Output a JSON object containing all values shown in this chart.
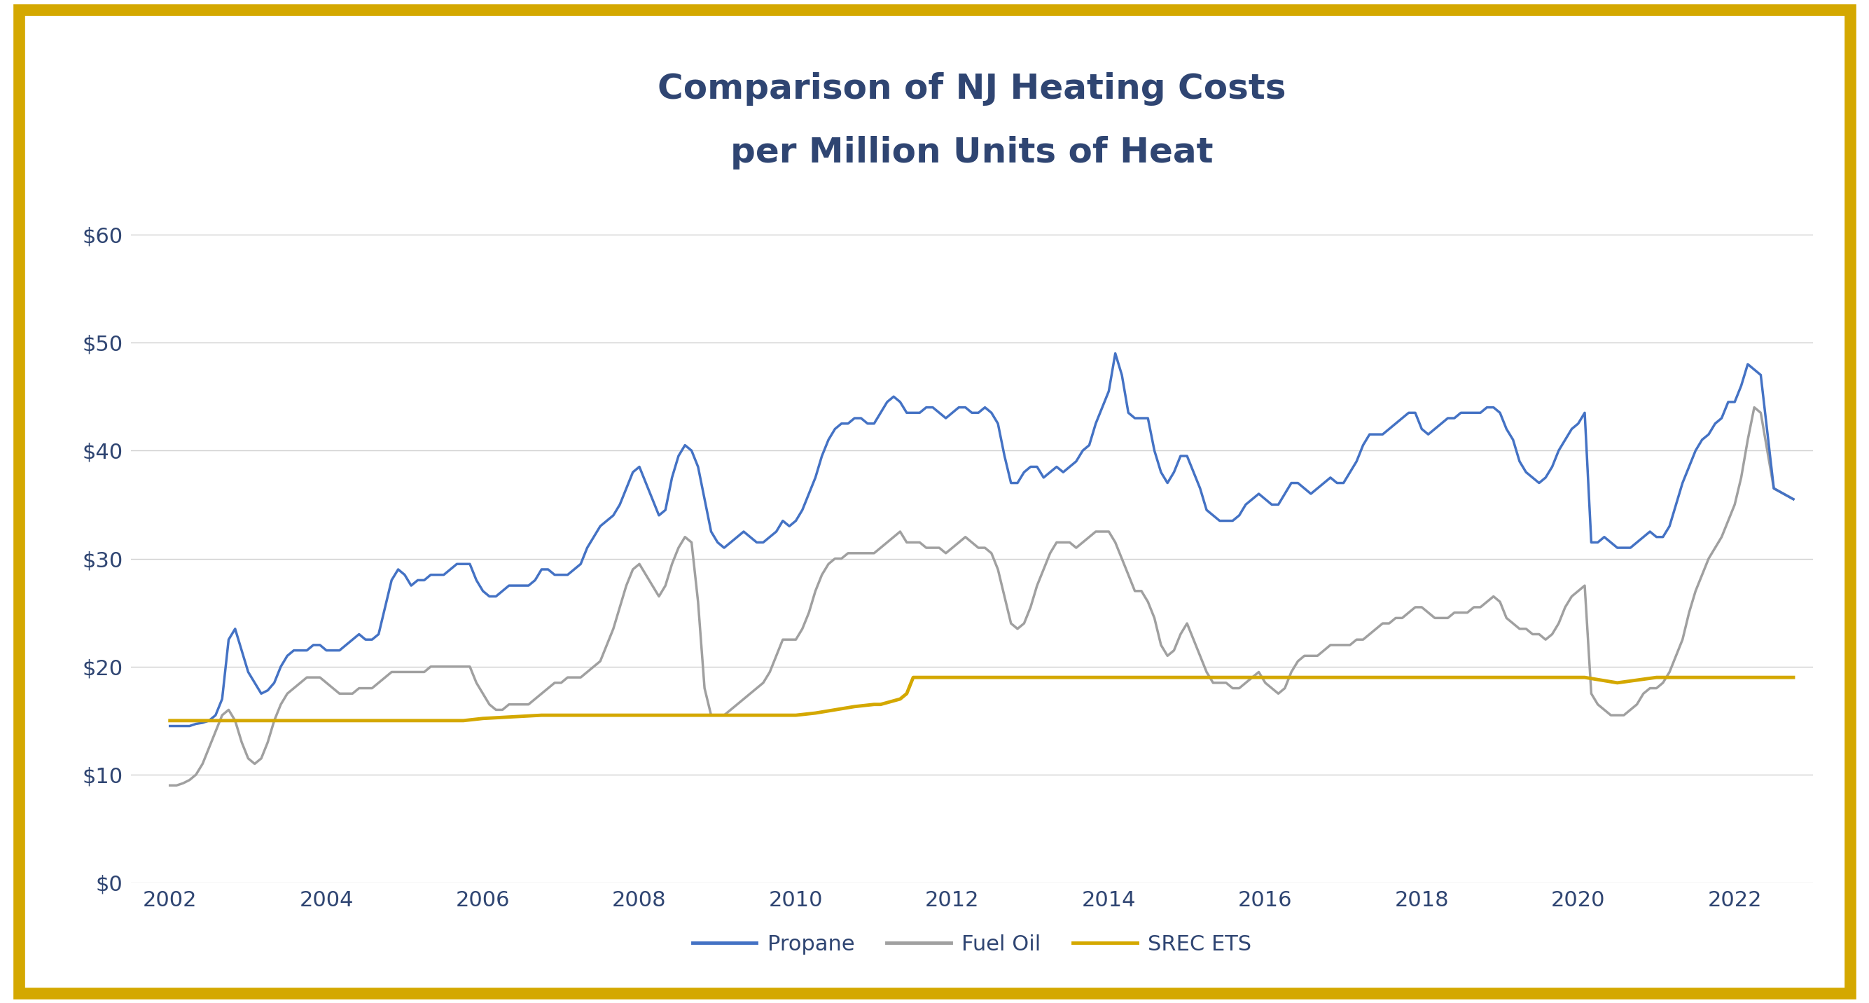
{
  "title_line1": "Comparison of NJ Heating Costs",
  "title_line2": "per Million Units of Heat",
  "title_fontsize": 36,
  "title_fontweight": "bold",
  "title_color": "#2f4572",
  "ylim": [
    0,
    65
  ],
  "yticks": [
    0,
    10,
    20,
    30,
    40,
    50,
    60
  ],
  "ytick_labels": [
    "$0",
    "$10",
    "$20",
    "$30",
    "$40",
    "$50",
    "$60"
  ],
  "background_color": "#ffffff",
  "border_color": "#d4a800",
  "border_linewidth": 12,
  "grid_color": "#d0d0d0",
  "grid_linewidth": 1.0,
  "propane_color": "#4472c4",
  "fueloil_color": "#a0a0a0",
  "srec_color": "#d4a800",
  "propane_linewidth": 2.5,
  "fueloil_linewidth": 2.5,
  "srec_linewidth": 3.5,
  "legend_labels": [
    "Propane",
    "Fuel Oil",
    "SREC ETS"
  ],
  "legend_fontsize": 22,
  "tick_fontsize": 22,
  "tick_color": "#2f4572",
  "xticks": [
    2002,
    2004,
    2006,
    2008,
    2010,
    2012,
    2014,
    2016,
    2018,
    2020,
    2022
  ],
  "xlim": [
    2001.5,
    2023.0
  ],
  "propane_x": [
    2002.0,
    2002.083,
    2002.167,
    2002.25,
    2002.333,
    2002.417,
    2002.5,
    2002.583,
    2002.667,
    2002.75,
    2002.833,
    2002.917,
    2003.0,
    2003.083,
    2003.167,
    2003.25,
    2003.333,
    2003.417,
    2003.5,
    2003.583,
    2003.667,
    2003.75,
    2003.833,
    2003.917,
    2004.0,
    2004.083,
    2004.167,
    2004.25,
    2004.333,
    2004.417,
    2004.5,
    2004.583,
    2004.667,
    2004.75,
    2004.833,
    2004.917,
    2005.0,
    2005.083,
    2005.167,
    2005.25,
    2005.333,
    2005.417,
    2005.5,
    2005.583,
    2005.667,
    2005.75,
    2005.833,
    2005.917,
    2006.0,
    2006.083,
    2006.167,
    2006.25,
    2006.333,
    2006.417,
    2006.5,
    2006.583,
    2006.667,
    2006.75,
    2006.833,
    2006.917,
    2007.0,
    2007.083,
    2007.167,
    2007.25,
    2007.333,
    2007.417,
    2007.5,
    2007.583,
    2007.667,
    2007.75,
    2007.833,
    2007.917,
    2008.0,
    2008.083,
    2008.167,
    2008.25,
    2008.333,
    2008.417,
    2008.5,
    2008.583,
    2008.667,
    2008.75,
    2008.833,
    2008.917,
    2009.0,
    2009.083,
    2009.167,
    2009.25,
    2009.333,
    2009.417,
    2009.5,
    2009.583,
    2009.667,
    2009.75,
    2009.833,
    2009.917,
    2010.0,
    2010.083,
    2010.167,
    2010.25,
    2010.333,
    2010.417,
    2010.5,
    2010.583,
    2010.667,
    2010.75,
    2010.833,
    2010.917,
    2011.0,
    2011.083,
    2011.167,
    2011.25,
    2011.333,
    2011.417,
    2011.5,
    2011.583,
    2011.667,
    2011.75,
    2011.833,
    2011.917,
    2012.0,
    2012.083,
    2012.167,
    2012.25,
    2012.333,
    2012.417,
    2012.5,
    2012.583,
    2012.667,
    2012.75,
    2012.833,
    2012.917,
    2013.0,
    2013.083,
    2013.167,
    2013.25,
    2013.333,
    2013.417,
    2013.5,
    2013.583,
    2013.667,
    2013.75,
    2013.833,
    2013.917,
    2014.0,
    2014.083,
    2014.167,
    2014.25,
    2014.333,
    2014.417,
    2014.5,
    2014.583,
    2014.667,
    2014.75,
    2014.833,
    2014.917,
    2015.0,
    2015.083,
    2015.167,
    2015.25,
    2015.333,
    2015.417,
    2015.5,
    2015.583,
    2015.667,
    2015.75,
    2015.833,
    2015.917,
    2016.0,
    2016.083,
    2016.167,
    2016.25,
    2016.333,
    2016.417,
    2016.5,
    2016.583,
    2016.667,
    2016.75,
    2016.833,
    2016.917,
    2017.0,
    2017.083,
    2017.167,
    2017.25,
    2017.333,
    2017.417,
    2017.5,
    2017.583,
    2017.667,
    2017.75,
    2017.833,
    2017.917,
    2018.0,
    2018.083,
    2018.167,
    2018.25,
    2018.333,
    2018.417,
    2018.5,
    2018.583,
    2018.667,
    2018.75,
    2018.833,
    2018.917,
    2019.0,
    2019.083,
    2019.167,
    2019.25,
    2019.333,
    2019.417,
    2019.5,
    2019.583,
    2019.667,
    2019.75,
    2019.833,
    2019.917,
    2020.0,
    2020.083,
    2020.167,
    2020.25,
    2020.333,
    2020.417,
    2020.5,
    2020.583,
    2020.667,
    2020.75,
    2020.833,
    2020.917,
    2021.0,
    2021.083,
    2021.167,
    2021.25,
    2021.333,
    2021.417,
    2021.5,
    2021.583,
    2021.667,
    2021.75,
    2021.833,
    2021.917,
    2022.0,
    2022.083,
    2022.167,
    2022.25,
    2022.333,
    2022.5,
    2022.75
  ],
  "propane_y": [
    14.5,
    14.5,
    14.5,
    14.5,
    14.7,
    14.8,
    15.0,
    15.5,
    17.0,
    22.5,
    23.5,
    21.5,
    19.5,
    18.5,
    17.5,
    17.8,
    18.5,
    20.0,
    21.0,
    21.5,
    21.5,
    21.5,
    22.0,
    22.0,
    21.5,
    21.5,
    21.5,
    22.0,
    22.5,
    23.0,
    22.5,
    22.5,
    23.0,
    25.5,
    28.0,
    29.0,
    28.5,
    27.5,
    28.0,
    28.0,
    28.5,
    28.5,
    28.5,
    29.0,
    29.5,
    29.5,
    29.5,
    28.0,
    27.0,
    26.5,
    26.5,
    27.0,
    27.5,
    27.5,
    27.5,
    27.5,
    28.0,
    29.0,
    29.0,
    28.5,
    28.5,
    28.5,
    29.0,
    29.5,
    31.0,
    32.0,
    33.0,
    33.5,
    34.0,
    35.0,
    36.5,
    38.0,
    38.5,
    37.0,
    35.5,
    34.0,
    34.5,
    37.5,
    39.5,
    40.5,
    40.0,
    38.5,
    35.5,
    32.5,
    31.5,
    31.0,
    31.5,
    32.0,
    32.5,
    32.0,
    31.5,
    31.5,
    32.0,
    32.5,
    33.5,
    33.0,
    33.5,
    34.5,
    36.0,
    37.5,
    39.5,
    41.0,
    42.0,
    42.5,
    42.5,
    43.0,
    43.0,
    42.5,
    42.5,
    43.5,
    44.5,
    45.0,
    44.5,
    43.5,
    43.5,
    43.5,
    44.0,
    44.0,
    43.5,
    43.0,
    43.5,
    44.0,
    44.0,
    43.5,
    43.5,
    44.0,
    43.5,
    42.5,
    39.5,
    37.0,
    37.0,
    38.0,
    38.5,
    38.5,
    37.5,
    38.0,
    38.5,
    38.0,
    38.5,
    39.0,
    40.0,
    40.5,
    42.5,
    44.0,
    45.5,
    49.0,
    47.0,
    43.5,
    43.0,
    43.0,
    43.0,
    40.0,
    38.0,
    37.0,
    38.0,
    39.5,
    39.5,
    38.0,
    36.5,
    34.5,
    34.0,
    33.5,
    33.5,
    33.5,
    34.0,
    35.0,
    35.5,
    36.0,
    35.5,
    35.0,
    35.0,
    36.0,
    37.0,
    37.0,
    36.5,
    36.0,
    36.5,
    37.0,
    37.5,
    37.0,
    37.0,
    38.0,
    39.0,
    40.5,
    41.5,
    41.5,
    41.5,
    42.0,
    42.5,
    43.0,
    43.5,
    43.5,
    42.0,
    41.5,
    42.0,
    42.5,
    43.0,
    43.0,
    43.5,
    43.5,
    43.5,
    43.5,
    44.0,
    44.0,
    43.5,
    42.0,
    41.0,
    39.0,
    38.0,
    37.5,
    37.0,
    37.5,
    38.5,
    40.0,
    41.0,
    42.0,
    42.5,
    43.5,
    31.5,
    31.5,
    32.0,
    31.5,
    31.0,
    31.0,
    31.0,
    31.5,
    32.0,
    32.5,
    32.0,
    32.0,
    33.0,
    35.0,
    37.0,
    38.5,
    40.0,
    41.0,
    41.5,
    42.5,
    43.0,
    44.5,
    44.5,
    46.0,
    48.0,
    47.5,
    47.0,
    36.5,
    35.5
  ],
  "fueloil_x": [
    2002.0,
    2002.083,
    2002.167,
    2002.25,
    2002.333,
    2002.417,
    2002.5,
    2002.583,
    2002.667,
    2002.75,
    2002.833,
    2002.917,
    2003.0,
    2003.083,
    2003.167,
    2003.25,
    2003.333,
    2003.417,
    2003.5,
    2003.583,
    2003.667,
    2003.75,
    2003.833,
    2003.917,
    2004.0,
    2004.083,
    2004.167,
    2004.25,
    2004.333,
    2004.417,
    2004.5,
    2004.583,
    2004.667,
    2004.75,
    2004.833,
    2004.917,
    2005.0,
    2005.083,
    2005.167,
    2005.25,
    2005.333,
    2005.417,
    2005.5,
    2005.583,
    2005.667,
    2005.75,
    2005.833,
    2005.917,
    2006.0,
    2006.083,
    2006.167,
    2006.25,
    2006.333,
    2006.417,
    2006.5,
    2006.583,
    2006.667,
    2006.75,
    2006.833,
    2006.917,
    2007.0,
    2007.083,
    2007.167,
    2007.25,
    2007.333,
    2007.417,
    2007.5,
    2007.583,
    2007.667,
    2007.75,
    2007.833,
    2007.917,
    2008.0,
    2008.083,
    2008.167,
    2008.25,
    2008.333,
    2008.417,
    2008.5,
    2008.583,
    2008.667,
    2008.75,
    2008.833,
    2008.917,
    2009.0,
    2009.083,
    2009.167,
    2009.25,
    2009.333,
    2009.417,
    2009.5,
    2009.583,
    2009.667,
    2009.75,
    2009.833,
    2009.917,
    2010.0,
    2010.083,
    2010.167,
    2010.25,
    2010.333,
    2010.417,
    2010.5,
    2010.583,
    2010.667,
    2010.75,
    2010.833,
    2010.917,
    2011.0,
    2011.083,
    2011.167,
    2011.25,
    2011.333,
    2011.417,
    2011.5,
    2011.583,
    2011.667,
    2011.75,
    2011.833,
    2011.917,
    2012.0,
    2012.083,
    2012.167,
    2012.25,
    2012.333,
    2012.417,
    2012.5,
    2012.583,
    2012.667,
    2012.75,
    2012.833,
    2012.917,
    2013.0,
    2013.083,
    2013.167,
    2013.25,
    2013.333,
    2013.417,
    2013.5,
    2013.583,
    2013.667,
    2013.75,
    2013.833,
    2013.917,
    2014.0,
    2014.083,
    2014.167,
    2014.25,
    2014.333,
    2014.417,
    2014.5,
    2014.583,
    2014.667,
    2014.75,
    2014.833,
    2014.917,
    2015.0,
    2015.083,
    2015.167,
    2015.25,
    2015.333,
    2015.417,
    2015.5,
    2015.583,
    2015.667,
    2015.75,
    2015.833,
    2015.917,
    2016.0,
    2016.083,
    2016.167,
    2016.25,
    2016.333,
    2016.417,
    2016.5,
    2016.583,
    2016.667,
    2016.75,
    2016.833,
    2016.917,
    2017.0,
    2017.083,
    2017.167,
    2017.25,
    2017.333,
    2017.417,
    2017.5,
    2017.583,
    2017.667,
    2017.75,
    2017.833,
    2017.917,
    2018.0,
    2018.083,
    2018.167,
    2018.25,
    2018.333,
    2018.417,
    2018.5,
    2018.583,
    2018.667,
    2018.75,
    2018.833,
    2018.917,
    2019.0,
    2019.083,
    2019.167,
    2019.25,
    2019.333,
    2019.417,
    2019.5,
    2019.583,
    2019.667,
    2019.75,
    2019.833,
    2019.917,
    2020.0,
    2020.083,
    2020.167,
    2020.25,
    2020.333,
    2020.417,
    2020.5,
    2020.583,
    2020.667,
    2020.75,
    2020.833,
    2020.917,
    2021.0,
    2021.083,
    2021.167,
    2021.25,
    2021.333,
    2021.417,
    2021.5,
    2021.583,
    2021.667,
    2021.75,
    2021.833,
    2021.917,
    2022.0,
    2022.083,
    2022.167,
    2022.25,
    2022.333,
    2022.5,
    2022.75
  ],
  "fueloil_y": [
    9.0,
    9.0,
    9.2,
    9.5,
    10.0,
    11.0,
    12.5,
    14.0,
    15.5,
    16.0,
    15.0,
    13.0,
    11.5,
    11.0,
    11.5,
    13.0,
    15.0,
    16.5,
    17.5,
    18.0,
    18.5,
    19.0,
    19.0,
    19.0,
    18.5,
    18.0,
    17.5,
    17.5,
    17.5,
    18.0,
    18.0,
    18.0,
    18.5,
    19.0,
    19.5,
    19.5,
    19.5,
    19.5,
    19.5,
    19.5,
    20.0,
    20.0,
    20.0,
    20.0,
    20.0,
    20.0,
    20.0,
    18.5,
    17.5,
    16.5,
    16.0,
    16.0,
    16.5,
    16.5,
    16.5,
    16.5,
    17.0,
    17.5,
    18.0,
    18.5,
    18.5,
    19.0,
    19.0,
    19.0,
    19.5,
    20.0,
    20.5,
    22.0,
    23.5,
    25.5,
    27.5,
    29.0,
    29.5,
    28.5,
    27.5,
    26.5,
    27.5,
    29.5,
    31.0,
    32.0,
    31.5,
    26.0,
    18.0,
    15.5,
    15.5,
    15.5,
    16.0,
    16.5,
    17.0,
    17.5,
    18.0,
    18.5,
    19.5,
    21.0,
    22.5,
    22.5,
    22.5,
    23.5,
    25.0,
    27.0,
    28.5,
    29.5,
    30.0,
    30.0,
    30.5,
    30.5,
    30.5,
    30.5,
    30.5,
    31.0,
    31.5,
    32.0,
    32.5,
    31.5,
    31.5,
    31.5,
    31.0,
    31.0,
    31.0,
    30.5,
    31.0,
    31.5,
    32.0,
    31.5,
    31.0,
    31.0,
    30.5,
    29.0,
    26.5,
    24.0,
    23.5,
    24.0,
    25.5,
    27.5,
    29.0,
    30.5,
    31.5,
    31.5,
    31.5,
    31.0,
    31.5,
    32.0,
    32.5,
    32.5,
    32.5,
    31.5,
    30.0,
    28.5,
    27.0,
    27.0,
    26.0,
    24.5,
    22.0,
    21.0,
    21.5,
    23.0,
    24.0,
    22.5,
    21.0,
    19.5,
    18.5,
    18.5,
    18.5,
    18.0,
    18.0,
    18.5,
    19.0,
    19.5,
    18.5,
    18.0,
    17.5,
    18.0,
    19.5,
    20.5,
    21.0,
    21.0,
    21.0,
    21.5,
    22.0,
    22.0,
    22.0,
    22.0,
    22.5,
    22.5,
    23.0,
    23.5,
    24.0,
    24.0,
    24.5,
    24.5,
    25.0,
    25.5,
    25.5,
    25.0,
    24.5,
    24.5,
    24.5,
    25.0,
    25.0,
    25.0,
    25.5,
    25.5,
    26.0,
    26.5,
    26.0,
    24.5,
    24.0,
    23.5,
    23.5,
    23.0,
    23.0,
    22.5,
    23.0,
    24.0,
    25.5,
    26.5,
    27.0,
    27.5,
    17.5,
    16.5,
    16.0,
    15.5,
    15.5,
    15.5,
    16.0,
    16.5,
    17.5,
    18.0,
    18.0,
    18.5,
    19.5,
    21.0,
    22.5,
    25.0,
    27.0,
    28.5,
    30.0,
    31.0,
    32.0,
    33.5,
    35.0,
    37.5,
    41.0,
    44.0,
    43.5,
    36.5,
    35.5
  ],
  "srec_x": [
    2002.0,
    2002.25,
    2002.5,
    2002.75,
    2003.0,
    2003.25,
    2003.5,
    2003.75,
    2004.0,
    2004.25,
    2004.5,
    2004.75,
    2005.0,
    2005.25,
    2005.5,
    2005.75,
    2006.0,
    2006.25,
    2006.5,
    2006.75,
    2007.0,
    2007.25,
    2007.5,
    2007.75,
    2008.0,
    2008.25,
    2008.5,
    2008.75,
    2009.0,
    2009.25,
    2009.5,
    2009.75,
    2010.0,
    2010.25,
    2010.5,
    2010.75,
    2011.0,
    2011.083,
    2011.333,
    2011.417,
    2011.5,
    2011.583,
    2011.75,
    2012.0,
    2012.5,
    2013.0,
    2013.5,
    2014.0,
    2014.083,
    2014.5,
    2015.0,
    2015.5,
    2016.0,
    2016.5,
    2017.0,
    2017.5,
    2018.0,
    2018.5,
    2019.0,
    2019.5,
    2020.0,
    2020.083,
    2020.5,
    2021.0,
    2021.5,
    2022.0,
    2022.5,
    2022.75
  ],
  "srec_y": [
    15.0,
    15.0,
    15.0,
    15.0,
    15.0,
    15.0,
    15.0,
    15.0,
    15.0,
    15.0,
    15.0,
    15.0,
    15.0,
    15.0,
    15.0,
    15.0,
    15.2,
    15.3,
    15.4,
    15.5,
    15.5,
    15.5,
    15.5,
    15.5,
    15.5,
    15.5,
    15.5,
    15.5,
    15.5,
    15.5,
    15.5,
    15.5,
    15.5,
    15.7,
    16.0,
    16.3,
    16.5,
    16.5,
    17.0,
    17.5,
    19.0,
    19.0,
    19.0,
    19.0,
    19.0,
    19.0,
    19.0,
    19.0,
    19.0,
    19.0,
    19.0,
    19.0,
    19.0,
    19.0,
    19.0,
    19.0,
    19.0,
    19.0,
    19.0,
    19.0,
    19.0,
    19.0,
    18.5,
    19.0,
    19.0,
    19.0,
    19.0,
    19.0
  ]
}
